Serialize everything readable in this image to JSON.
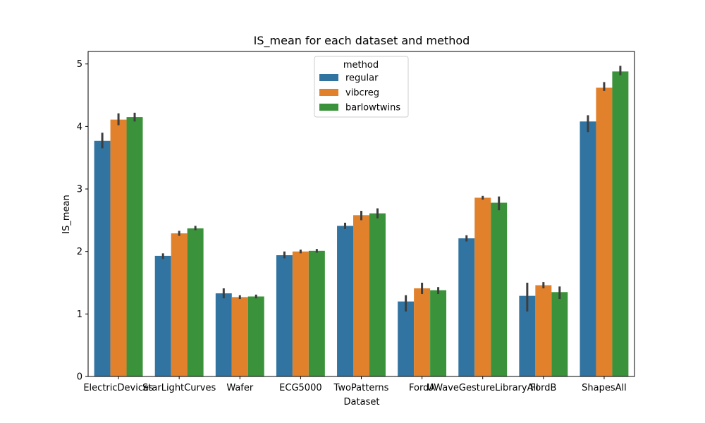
{
  "chart_data": {
    "type": "bar",
    "title": "IS_mean for each dataset and method",
    "xlabel": "Dataset",
    "ylabel": "IS_mean",
    "ylim": [
      0,
      5.2
    ],
    "yticks": [
      "0",
      "1",
      "2",
      "3",
      "4",
      "5"
    ],
    "grid": false,
    "legend": {
      "title": "method",
      "placement": "top-center"
    },
    "categories": [
      "ElectricDevices",
      "StarLightCurves",
      "Wafer",
      "ECG5000",
      "TwoPatterns",
      "FordA",
      "UWaveGestureLibraryAll",
      "FordB",
      "ShapesAll"
    ],
    "series": [
      {
        "name": "regular",
        "color": "#3274a1",
        "values": [
          3.77,
          1.93,
          1.33,
          1.94,
          2.41,
          1.2,
          2.21,
          1.29,
          4.08
        ],
        "err_low": [
          3.65,
          1.88,
          1.25,
          1.89,
          2.36,
          1.04,
          2.16,
          1.04,
          3.91
        ],
        "err_high": [
          3.9,
          1.97,
          1.41,
          2.0,
          2.46,
          1.3,
          2.26,
          1.5,
          4.18
        ]
      },
      {
        "name": "vibcreg",
        "color": "#e1812c",
        "values": [
          4.11,
          2.29,
          1.27,
          2.0,
          2.58,
          1.41,
          2.86,
          1.46,
          4.62
        ],
        "err_low": [
          4.02,
          2.25,
          1.24,
          1.97,
          2.5,
          1.32,
          2.83,
          1.41,
          4.57
        ],
        "err_high": [
          4.21,
          2.33,
          1.3,
          2.03,
          2.65,
          1.5,
          2.89,
          1.51,
          4.71
        ]
      },
      {
        "name": "barlowtwins",
        "color": "#3a923a",
        "values": [
          4.15,
          2.37,
          1.28,
          2.01,
          2.61,
          1.38,
          2.78,
          1.35,
          4.88
        ],
        "err_low": [
          4.08,
          2.34,
          1.25,
          1.98,
          2.53,
          1.32,
          2.66,
          1.24,
          4.82
        ],
        "err_high": [
          4.22,
          2.41,
          1.31,
          2.04,
          2.69,
          1.43,
          2.88,
          1.44,
          4.97
        ]
      }
    ]
  }
}
